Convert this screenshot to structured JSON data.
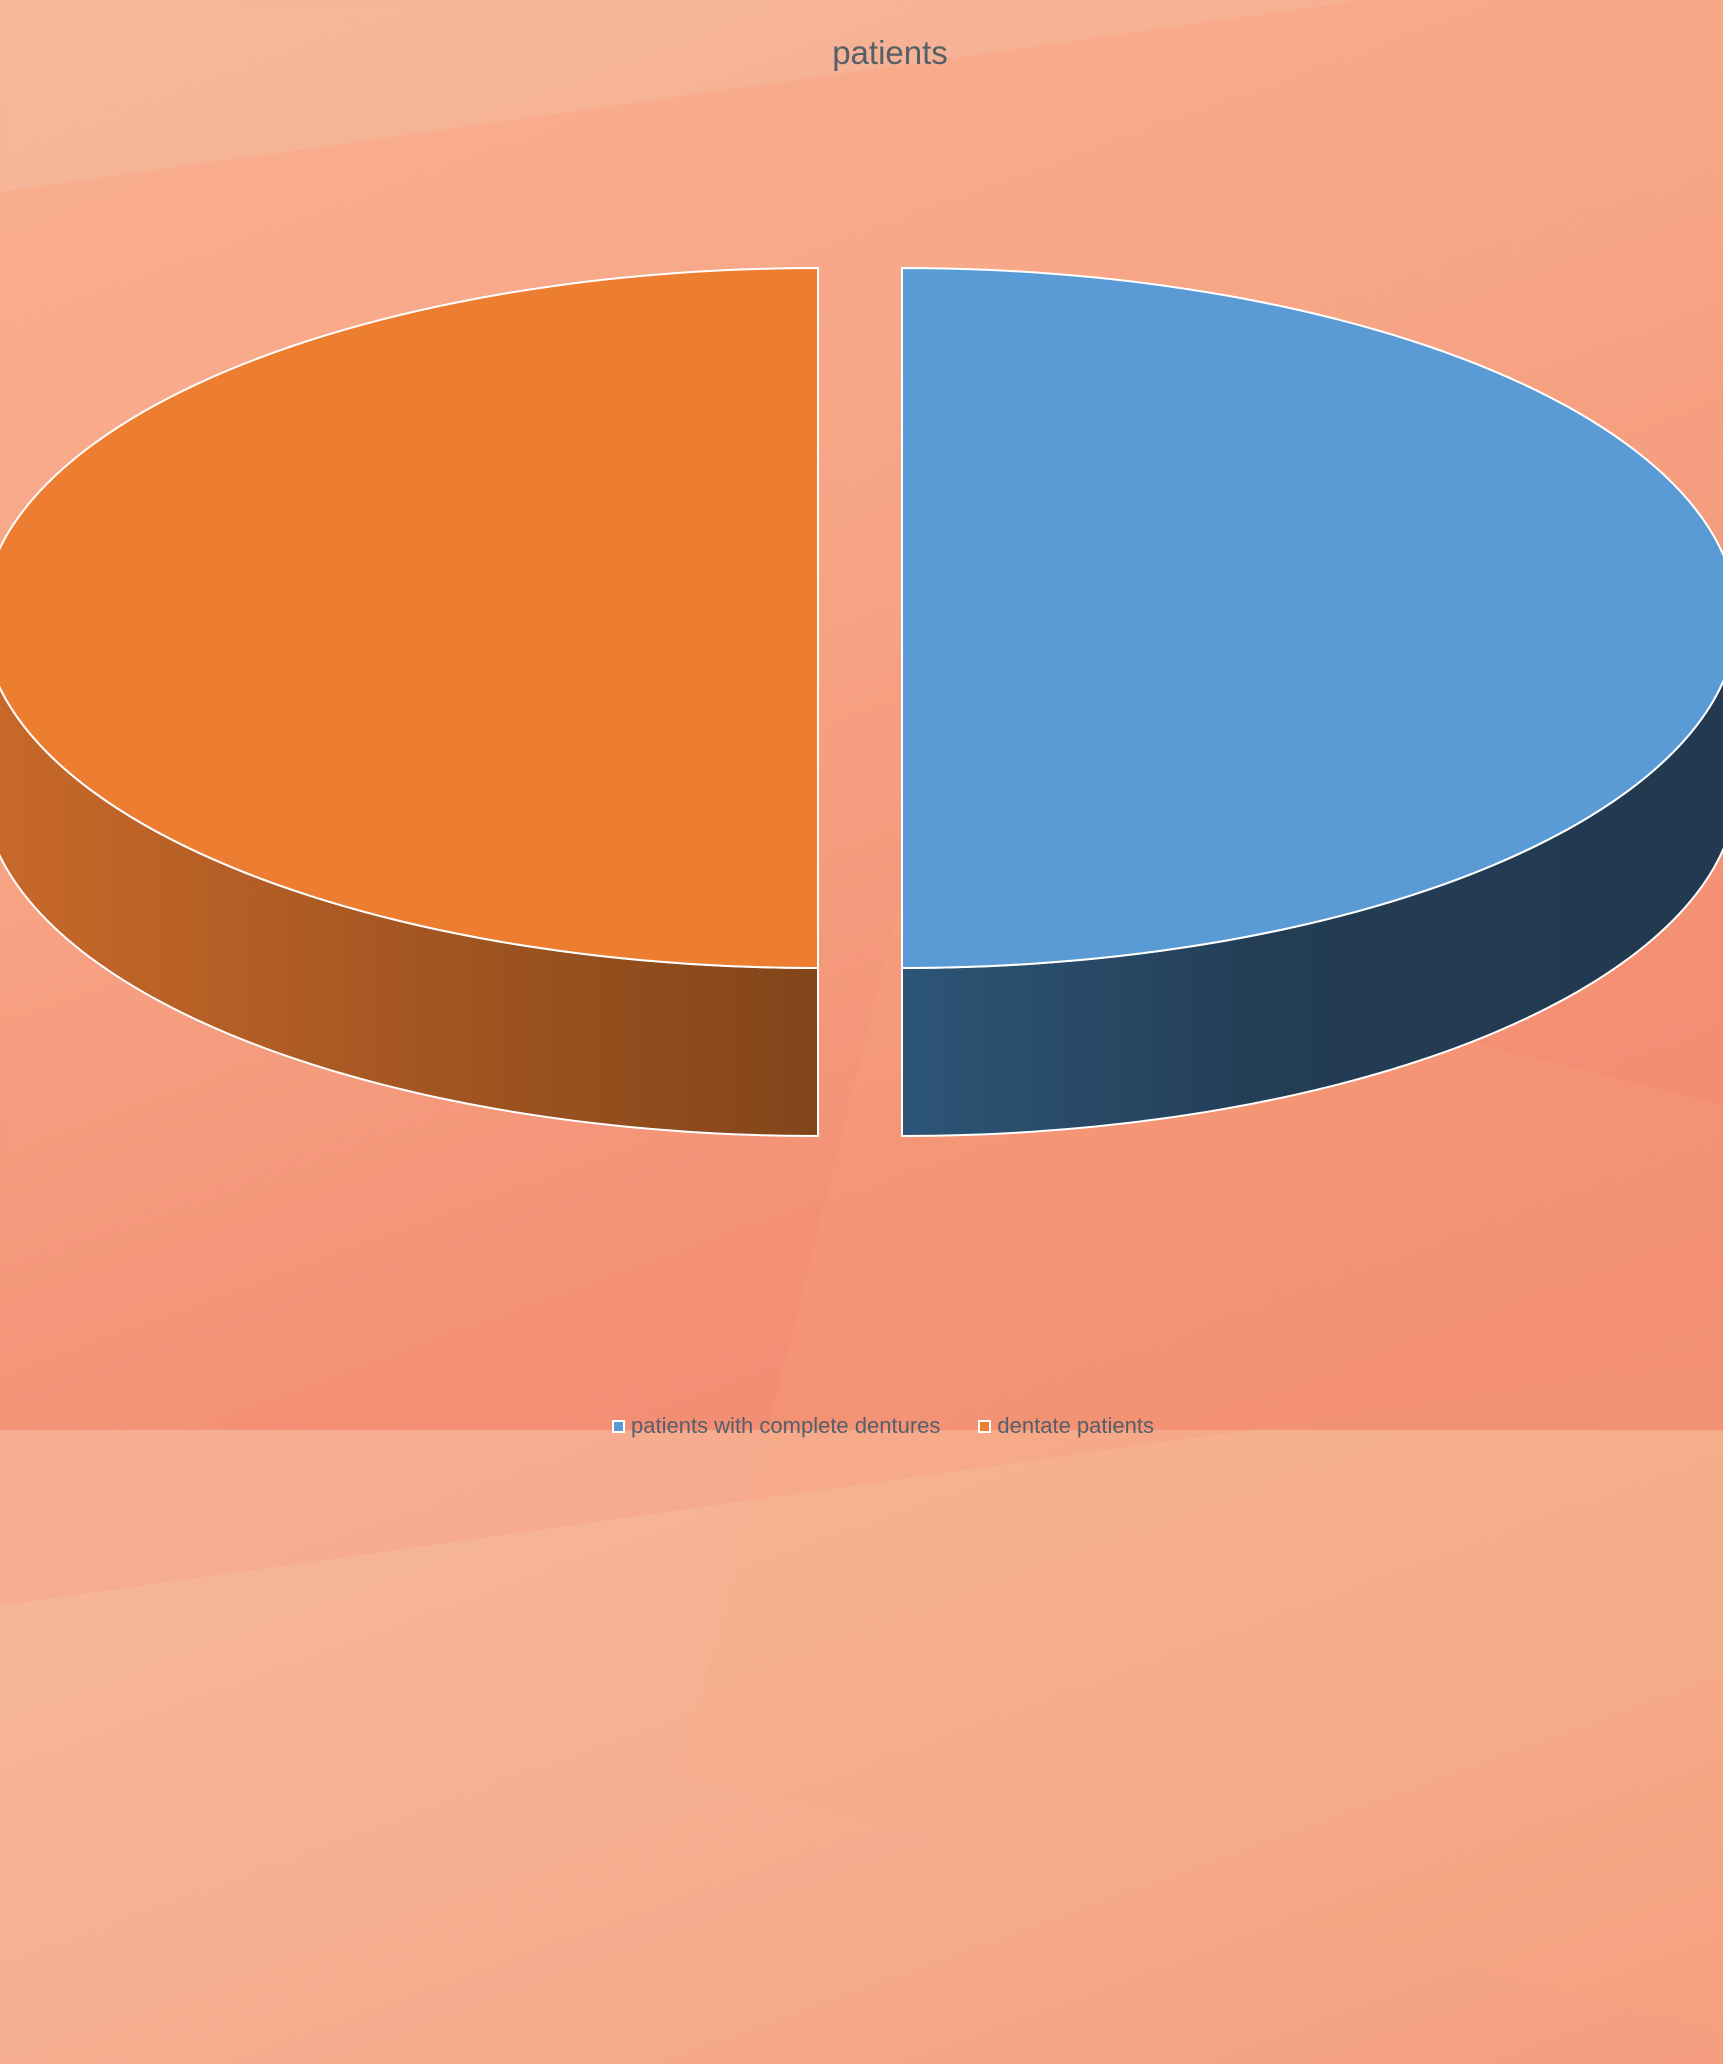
{
  "chart_data": {
    "type": "pie",
    "title": "patients",
    "categories": [
      "patients with complete dentures",
      "dentate patients"
    ],
    "values": [
      50,
      50
    ],
    "colors": {
      "patients with complete dentures": "#5b9bd5",
      "dentate patients": "#ed7d31"
    },
    "style": "3d-exploded",
    "legend_position": "bottom"
  }
}
